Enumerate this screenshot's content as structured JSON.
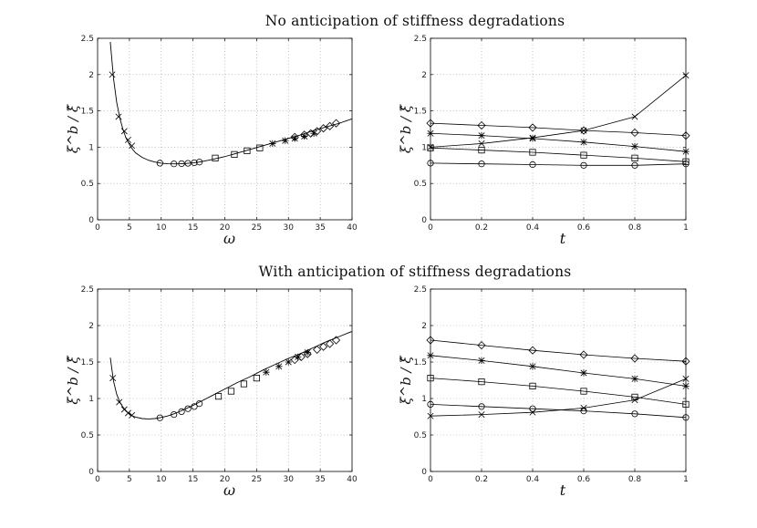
{
  "figure": {
    "title_top": "No anticipation of stiffness degradations",
    "title_bottom": "With anticipation of stiffness degradations"
  },
  "chart_data": [
    {
      "id": "top-left",
      "type": "line",
      "xlabel": "ω",
      "ylabel": "ξ^b / ξ̂",
      "xlim": [
        0,
        40
      ],
      "ylim": [
        0,
        2.5
      ],
      "xticks": [
        0,
        5,
        10,
        15,
        20,
        25,
        30,
        35,
        40
      ],
      "yticks": [
        0,
        0.5,
        1,
        1.5,
        2,
        2.5
      ],
      "grid": true,
      "curve": {
        "x": [
          2.0,
          2.5,
          3,
          3.5,
          4,
          4.5,
          5,
          5.5,
          6,
          7,
          8,
          9,
          10,
          11,
          12,
          13,
          14,
          15,
          16,
          18,
          20,
          22,
          24,
          26,
          28,
          30,
          32,
          34,
          36,
          38,
          40
        ],
        "y": [
          2.45,
          1.95,
          1.62,
          1.4,
          1.24,
          1.12,
          1.04,
          0.97,
          0.92,
          0.86,
          0.82,
          0.795,
          0.78,
          0.772,
          0.77,
          0.772,
          0.776,
          0.784,
          0.795,
          0.83,
          0.87,
          0.92,
          0.97,
          1.02,
          1.07,
          1.12,
          1.17,
          1.23,
          1.28,
          1.33,
          1.39
        ]
      },
      "markers": [
        {
          "shape": "x",
          "x": [
            2.3,
            3.3,
            4.2,
            4.8,
            5.4
          ],
          "y": [
            2.0,
            1.42,
            1.22,
            1.1,
            1.02
          ]
        },
        {
          "shape": "o",
          "x": [
            9.8,
            12.0,
            13.2,
            14.2,
            15.2,
            16.0
          ],
          "y": [
            0.78,
            0.77,
            0.773,
            0.778,
            0.786,
            0.795
          ]
        },
        {
          "shape": "square",
          "x": [
            18.5,
            21.5,
            23.5,
            25.5
          ],
          "y": [
            0.85,
            0.9,
            0.95,
            0.99
          ]
        },
        {
          "shape": "*",
          "x": [
            27.5,
            29.5,
            31.0,
            32.5,
            34.0
          ],
          "y": [
            1.05,
            1.09,
            1.12,
            1.15,
            1.19
          ]
        },
        {
          "shape": "diamond",
          "x": [
            31.0,
            32.5,
            33.5,
            34.5,
            35.5,
            36.5,
            37.5
          ],
          "y": [
            1.14,
            1.17,
            1.19,
            1.22,
            1.26,
            1.29,
            1.33
          ]
        }
      ]
    },
    {
      "id": "top-right",
      "type": "line",
      "xlabel": "t",
      "ylabel": "ξ^b / ξ̂",
      "xlim": [
        0,
        1
      ],
      "ylim": [
        0,
        2.5
      ],
      "xticks": [
        0,
        0.2,
        0.4,
        0.6,
        0.8,
        1
      ],
      "yticks": [
        0,
        0.5,
        1,
        1.5,
        2,
        2.5
      ],
      "grid": true,
      "x": [
        0,
        0.2,
        0.4,
        0.6,
        0.8,
        1
      ],
      "series": [
        {
          "name": "diamond",
          "shape": "diamond",
          "values": [
            1.33,
            1.3,
            1.27,
            1.23,
            1.2,
            1.16
          ]
        },
        {
          "name": "star",
          "shape": "*",
          "values": [
            1.19,
            1.16,
            1.12,
            1.07,
            1.01,
            0.94
          ]
        },
        {
          "name": "x",
          "shape": "x",
          "values": [
            1.0,
            1.05,
            1.13,
            1.23,
            1.42,
            1.99
          ]
        },
        {
          "name": "square",
          "shape": "square",
          "values": [
            0.99,
            0.96,
            0.93,
            0.89,
            0.85,
            0.8
          ]
        },
        {
          "name": "circle",
          "shape": "o",
          "values": [
            0.78,
            0.77,
            0.76,
            0.75,
            0.75,
            0.77
          ]
        }
      ]
    },
    {
      "id": "bottom-left",
      "type": "line",
      "xlabel": "ω",
      "ylabel": "ξ^b / ξ̂",
      "xlim": [
        0,
        40
      ],
      "ylim": [
        0,
        2.5
      ],
      "xticks": [
        0,
        5,
        10,
        15,
        20,
        25,
        30,
        35,
        40
      ],
      "yticks": [
        0,
        0.5,
        1,
        1.5,
        2,
        2.5
      ],
      "grid": true,
      "curve": {
        "x": [
          2.0,
          2.5,
          3,
          3.5,
          4,
          4.5,
          5,
          5.5,
          6,
          7,
          8,
          9,
          10,
          11,
          12,
          13,
          14,
          15,
          16,
          18,
          20,
          22,
          24,
          26,
          28,
          30,
          32,
          34,
          36,
          38,
          40
        ],
        "y": [
          1.56,
          1.24,
          1.06,
          0.95,
          0.88,
          0.83,
          0.79,
          0.76,
          0.745,
          0.725,
          0.72,
          0.725,
          0.74,
          0.76,
          0.79,
          0.825,
          0.865,
          0.905,
          0.95,
          1.04,
          1.13,
          1.22,
          1.3,
          1.39,
          1.47,
          1.55,
          1.62,
          1.7,
          1.78,
          1.85,
          1.92
        ]
      },
      "markers": [
        {
          "shape": "x",
          "x": [
            2.4,
            3.4,
            4.2,
            4.8,
            5.4
          ],
          "y": [
            1.28,
            0.95,
            0.85,
            0.8,
            0.77
          ]
        },
        {
          "shape": "o",
          "x": [
            9.8,
            12.0,
            13.2,
            14.2,
            15.2,
            16.0
          ],
          "y": [
            0.735,
            0.78,
            0.82,
            0.86,
            0.89,
            0.93
          ]
        },
        {
          "shape": "square",
          "x": [
            19.0,
            21.0,
            23.0,
            25.0
          ],
          "y": [
            1.03,
            1.1,
            1.2,
            1.28
          ]
        },
        {
          "shape": "*",
          "x": [
            26.5,
            28.5,
            30.0,
            31.5,
            33.0
          ],
          "y": [
            1.36,
            1.44,
            1.5,
            1.57,
            1.63
          ]
        },
        {
          "shape": "diamond",
          "x": [
            31.0,
            32.0,
            33.0,
            34.5,
            35.5,
            36.5,
            37.5
          ],
          "y": [
            1.53,
            1.57,
            1.61,
            1.67,
            1.71,
            1.75,
            1.8
          ]
        }
      ]
    },
    {
      "id": "bottom-right",
      "type": "line",
      "xlabel": "t",
      "ylabel": "ξ^b / ξ̂",
      "xlim": [
        0,
        1
      ],
      "ylim": [
        0,
        2.5
      ],
      "xticks": [
        0,
        0.2,
        0.4,
        0.6,
        0.8,
        1
      ],
      "yticks": [
        0,
        0.5,
        1,
        1.5,
        2,
        2.5
      ],
      "grid": true,
      "x": [
        0,
        0.2,
        0.4,
        0.6,
        0.8,
        1
      ],
      "series": [
        {
          "name": "diamond",
          "shape": "diamond",
          "values": [
            1.8,
            1.73,
            1.66,
            1.6,
            1.55,
            1.51
          ]
        },
        {
          "name": "star",
          "shape": "*",
          "values": [
            1.59,
            1.52,
            1.44,
            1.35,
            1.27,
            1.17
          ]
        },
        {
          "name": "square",
          "shape": "square",
          "values": [
            1.28,
            1.23,
            1.17,
            1.1,
            1.02,
            0.92
          ]
        },
        {
          "name": "circle",
          "shape": "o",
          "values": [
            0.92,
            0.89,
            0.86,
            0.83,
            0.79,
            0.74
          ]
        },
        {
          "name": "x",
          "shape": "x",
          "values": [
            0.76,
            0.78,
            0.81,
            0.87,
            0.98,
            1.27
          ]
        }
      ]
    }
  ]
}
